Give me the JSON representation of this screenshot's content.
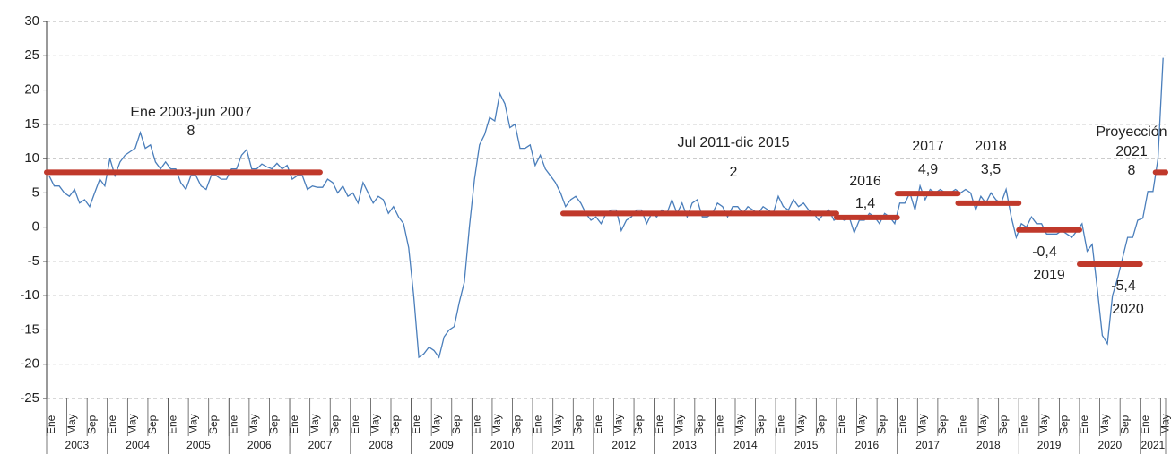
{
  "chart_data": {
    "type": "line",
    "years": [
      "2003",
      "2004",
      "2005",
      "2006",
      "2007",
      "2008",
      "2009",
      "2010",
      "2011",
      "2012",
      "2013",
      "2014",
      "2015",
      "2016",
      "2017",
      "2018",
      "2019",
      "2020",
      "2021"
    ],
    "categories": [
      "Ene",
      null,
      null,
      null,
      "May",
      null,
      null,
      null,
      "Sep",
      null,
      null,
      null,
      "Ene",
      null,
      null,
      null,
      "May",
      null,
      null,
      null,
      "Sep",
      null,
      null,
      null,
      "Ene",
      null,
      null,
      null,
      "May",
      null,
      null,
      null,
      "Sep",
      null,
      null,
      null,
      "Ene",
      null,
      null,
      null,
      "May",
      null,
      null,
      null,
      "Sep",
      null,
      null,
      null,
      "Ene",
      null,
      null,
      null,
      "May",
      null,
      null,
      null,
      "Sep",
      null,
      null,
      null,
      "Ene",
      null,
      null,
      null,
      "May",
      null,
      null,
      null,
      "Sep",
      null,
      null,
      null,
      "Ene",
      null,
      null,
      null,
      "May",
      null,
      null,
      null,
      "Sep",
      null,
      null,
      null,
      "Ene",
      null,
      null,
      null,
      "May",
      null,
      null,
      null,
      "Sep",
      null,
      null,
      null,
      "Ene",
      null,
      null,
      null,
      "May",
      null,
      null,
      null,
      "Sep",
      null,
      null,
      null,
      "Ene",
      null,
      null,
      null,
      "May",
      null,
      null,
      null,
      "Sep",
      null,
      null,
      null,
      "Ene",
      null,
      null,
      null,
      "May",
      null,
      null,
      null,
      "Sep",
      null,
      null,
      null,
      "Ene",
      null,
      null,
      null,
      "May",
      null,
      null,
      null,
      "Sep",
      null,
      null,
      null,
      "Ene",
      null,
      null,
      null,
      "May",
      null,
      null,
      null,
      "Sep",
      null,
      null,
      null,
      "Ene",
      null,
      null,
      null,
      "May",
      null,
      null,
      null,
      "Sep",
      null,
      null,
      null,
      "Ene",
      null,
      null,
      null,
      "May",
      null,
      null,
      null,
      "Sep",
      null,
      null,
      null,
      "Ene",
      null,
      null,
      null,
      "May",
      null,
      null,
      null,
      "Sep",
      null,
      null,
      null,
      "Ene",
      null,
      null,
      null,
      "May",
      null,
      null,
      null,
      "Sep",
      null,
      null,
      null,
      "Ene",
      null,
      null,
      null,
      "May",
      null,
      null,
      null,
      "Sep",
      null,
      null,
      null,
      "Ene",
      null,
      null,
      null,
      "May"
    ],
    "series": [
      {
        "color": "#4a7ebb",
        "values": [
          7.5,
          6,
          6,
          5,
          4.5,
          5.5,
          3.5,
          4,
          3,
          5,
          7,
          6,
          10,
          7.5,
          9.5,
          10.5,
          11,
          11.5,
          13.8,
          11.5,
          12,
          9.5,
          8.5,
          9.5,
          8.5,
          8.5,
          6.5,
          5.5,
          7.5,
          7.5,
          6,
          5.5,
          7.5,
          7.5,
          7,
          7,
          8.5,
          8.5,
          10.5,
          11.3,
          8.5,
          8.5,
          9.2,
          8.8,
          8.5,
          9.3,
          8.5,
          9,
          7,
          7.5,
          7.5,
          5.5,
          6,
          5.8,
          5.8,
          7,
          6.5,
          5,
          6,
          4.5,
          5,
          3.5,
          6.5,
          5,
          3.5,
          4.5,
          4,
          2,
          3,
          1.5,
          0.5,
          -3,
          -10,
          -19,
          -18.5,
          -17.5,
          -18,
          -19,
          -16,
          -15,
          -14.5,
          -11,
          -8,
          0,
          7,
          12,
          13.5,
          16,
          15.5,
          19.5,
          18,
          14.5,
          15,
          11.5,
          11.5,
          12,
          9,
          10.5,
          8.5,
          7.5,
          6.5,
          5,
          3,
          4,
          4.5,
          3.5,
          2,
          1,
          1.5,
          0.5,
          2,
          2.5,
          2.5,
          -0.5,
          1,
          1.5,
          2.5,
          2.5,
          0.5,
          2,
          1.5,
          2.5,
          2,
          4,
          2,
          3.5,
          1.5,
          3.5,
          4,
          1.5,
          1.5,
          2,
          3.5,
          3,
          1.5,
          3,
          3,
          2,
          3,
          2.5,
          2,
          3,
          2.5,
          2,
          4.5,
          3,
          2.5,
          4,
          3,
          3.5,
          2.5,
          2,
          1,
          2,
          2.5,
          1,
          1.5,
          1,
          1.5,
          -0.8,
          1,
          1,
          2,
          1.5,
          0.5,
          2,
          1.5,
          0.5,
          3.5,
          3.5,
          5,
          2.5,
          6,
          4,
          5.5,
          5,
          5.5,
          5,
          5,
          5.5,
          5,
          5.5,
          5,
          2.5,
          4.5,
          3.5,
          5,
          4,
          3.5,
          5.5,
          1.5,
          -1.5,
          0.5,
          0,
          1.5,
          0.5,
          0.5,
          -1,
          -1,
          -1,
          -0.5,
          -1,
          -1.5,
          -0.5,
          0.5,
          -3.5,
          -2.5,
          -9,
          -15.8,
          -17,
          -10,
          -7.5,
          -4.5,
          -1.5,
          -1.5,
          1,
          1.3,
          5.2,
          5.2,
          10,
          24.7
        ]
      }
    ],
    "averages": {
      "color": "#c0392b",
      "items": [
        {
          "period": [
            "Ene 2003-jun 2007"
          ],
          "value": 8,
          "value_label": "8",
          "from": "2003-01",
          "to": "2007-06"
        },
        {
          "period": [
            "Jul 2011-dic 2015"
          ],
          "value": 2,
          "value_label": "2",
          "from": "2011-07",
          "to": "2015-12"
        },
        {
          "period": [
            "2016"
          ],
          "value": 1.4,
          "value_label": "1,4",
          "from": "2016-01",
          "to": "2016-12"
        },
        {
          "period": [
            "2017"
          ],
          "value": 4.9,
          "value_label": "4,9",
          "from": "2017-01",
          "to": "2017-12"
        },
        {
          "period": [
            "2018"
          ],
          "value": 3.5,
          "value_label": "3,5",
          "from": "2018-01",
          "to": "2018-12"
        },
        {
          "period": [
            "2019"
          ],
          "value": -0.4,
          "value_label": "-0,4",
          "from": "2019-01",
          "to": "2019-12"
        },
        {
          "period": [
            "2020"
          ],
          "value": -5.4,
          "value_label": "-5,4",
          "from": "2020-01",
          "to": "2020-12"
        },
        {
          "period": [
            "Proyección",
            "2021"
          ],
          "value": 8,
          "value_label": "8",
          "from": "2021-04",
          "to": "2021-05"
        }
      ]
    },
    "ylim": [
      -25,
      30
    ],
    "yticks": [
      -25,
      -20,
      -15,
      -10,
      -5,
      0,
      5,
      10,
      15,
      20,
      25,
      30
    ],
    "grid": true
  }
}
